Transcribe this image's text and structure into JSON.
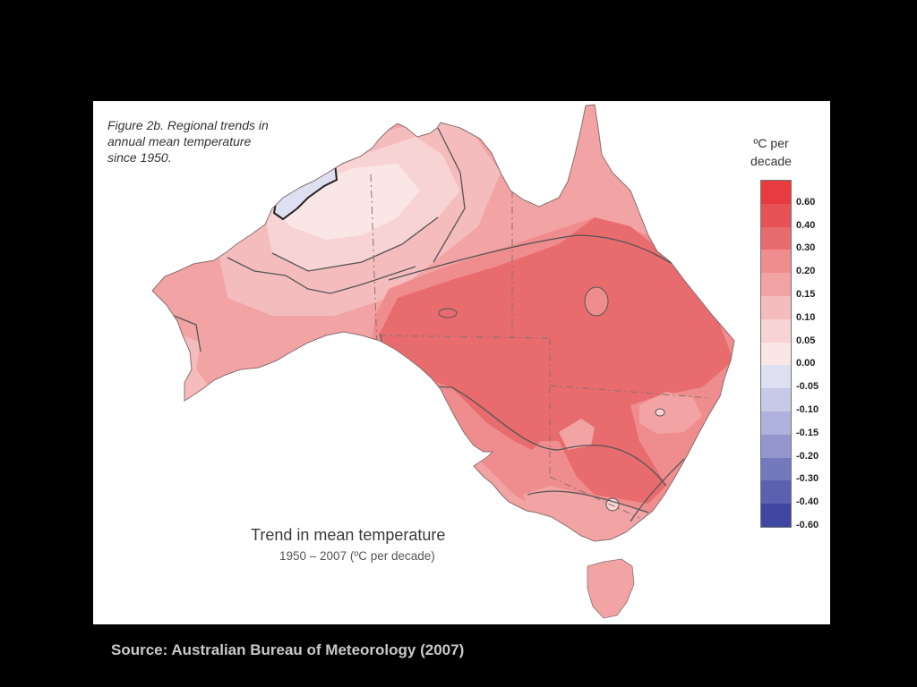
{
  "figure": {
    "caption_lines": [
      "Figure 2b. Regional trends in",
      "annual mean temperature",
      "since 1950."
    ]
  },
  "map": {
    "title": "Trend in mean temperature",
    "subtitle": "1950 – 2007 (ºC per decade)",
    "region": "Australia",
    "colors": {
      "0.30": "#e86b6e",
      "0.20": "#ef8d8e",
      "0.15": "#f2a3a4",
      "0.10": "#f5bcbe",
      "0.05": "#f8d3d4",
      "0.00": "#fbe6e6",
      "-0.05": "#dedff0"
    }
  },
  "legend": {
    "title_lines": [
      "ºC per",
      "decade"
    ],
    "entries": [
      {
        "label": "0.60",
        "color": "#e83b3f"
      },
      {
        "label": "0.40",
        "color": "#e75256"
      },
      {
        "label": "0.30",
        "color": "#e86b6e"
      },
      {
        "label": "0.20",
        "color": "#ef8d8e"
      },
      {
        "label": "0.15",
        "color": "#f2a3a4"
      },
      {
        "label": "0.10",
        "color": "#f5bcbe"
      },
      {
        "label": "0.05",
        "color": "#f8d3d4"
      },
      {
        "label": "0.00",
        "color": "#fbe6e6"
      },
      {
        "label": "-0.05",
        "color": "#dedff0"
      },
      {
        "label": "-0.10",
        "color": "#c7c9e6"
      },
      {
        "label": "-0.15",
        "color": "#aeb1db"
      },
      {
        "label": "-0.20",
        "color": "#9296cd"
      },
      {
        "label": "-0.30",
        "color": "#7478bd"
      },
      {
        "label": "-0.40",
        "color": "#5b60b0"
      },
      {
        "label": "-0.60",
        "color": "#3f47a3"
      }
    ]
  },
  "source": {
    "text": "Source: Australian Bureau of Meteorology (2007)"
  }
}
